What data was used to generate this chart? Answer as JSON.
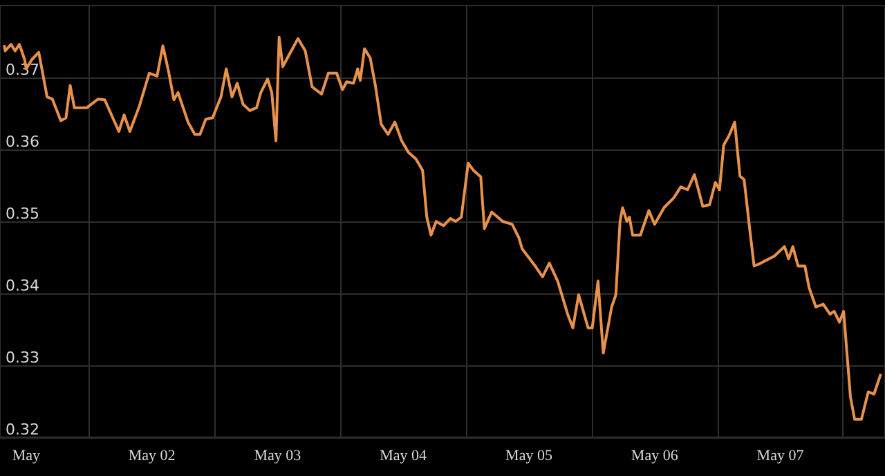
{
  "chart_data": {
    "type": "line",
    "x": [
      "--04-30T19:48",
      "--04-30T20:00",
      "--04-30T21:06",
      "--04-30T21:54",
      "--04-30T22:42",
      "--04-30T23:42",
      "--05-01T00:00",
      "--05-01T01:06",
      "--05-01T02:24",
      "--05-01T04:00",
      "--05-01T05:00",
      "--05-01T06:36",
      "--05-01T07:36",
      "--05-01T08:24",
      "--05-01T09:12",
      "--05-01T11:36",
      "--05-01T13:42",
      "--05-01T15:00",
      "--05-01T17:42",
      "--05-01T18:42",
      "--05-01T19:48",
      "--05-01T21:36",
      "--05-01T23:30",
      "--05-02T01:00",
      "--05-02T02:06",
      "--05-02T03:12",
      "--05-02T04:12",
      "--05-02T05:00",
      "--05-02T06:54",
      "--05-02T08:12",
      "--05-02T09:12",
      "--05-02T10:18",
      "--05-02T11:36",
      "--05-02T13:12",
      "--05-02T14:12",
      "--05-02T15:18",
      "--05-02T16:18",
      "--05-02T17:24",
      "--05-02T18:42",
      "--05-02T20:00",
      "--05-02T20:48",
      "--05-02T22:06",
      "--05-02T22:54",
      "--05-02T23:42",
      "--05-03T00:18",
      "--05-03T01:00",
      "--05-03T02:06",
      "--05-03T03:54",
      "--05-03T05:18",
      "--05-03T06:36",
      "--05-03T08:24",
      "--05-03T09:42",
      "--05-03T11:18",
      "--05-03T12:24",
      "--05-03T13:12",
      "--05-03T14:30",
      "--05-03T15:18",
      "--05-03T15:48",
      "--05-03T16:36",
      "--05-03T17:42",
      "--05-03T18:42",
      "--05-03T19:48",
      "--05-03T21:06",
      "--05-03T22:24",
      "--05-03T23:42",
      "--05-04T01:00",
      "--05-04T02:24",
      "--05-04T03:42",
      "--05-04T04:30",
      "--05-04T05:18",
      "--05-04T06:18",
      "--05-04T07:42",
      "--05-04T09:00",
      "--05-04T10:00",
      "--05-04T11:06",
      "--05-04T12:24",
      "--05-04T13:24",
      "--05-04T14:48",
      "--05-04T15:30",
      "--05-04T16:54",
      "--05-04T19:00",
      "--05-04T20:48",
      "--05-04T22:06",
      "--05-04T22:42",
      "--05-05T01:18",
      "--05-05T02:36",
      "--05-05T03:54",
      "--05-05T05:30",
      "--05-05T07:24",
      "--05-05T08:24",
      "--05-05T09:30",
      "--05-05T11:18",
      "--05-05T12:06",
      "--05-05T13:12",
      "--05-05T14:12",
      "--05-05T15:48",
      "--05-05T16:36",
      "--05-05T17:24",
      "--05-05T17:54",
      "--05-05T18:42",
      "--05-05T19:12",
      "--05-05T19:48",
      "--05-05T21:18",
      "--05-05T22:54",
      "--05-06T00:00",
      "--05-06T01:48",
      "--05-06T03:42",
      "--05-06T05:00",
      "--05-06T06:18",
      "--05-06T07:36",
      "--05-06T09:12",
      "--05-06T10:30",
      "--05-06T11:36",
      "--05-06T12:24",
      "--05-06T13:12",
      "--05-06T14:12",
      "--05-06T15:18",
      "--05-06T16:18",
      "--05-06T17:06",
      "--05-06T18:12",
      "--05-06T19:00",
      "--05-06T20:18",
      "--05-06T22:54",
      "--05-07T00:48",
      "--05-07T01:36",
      "--05-07T02:24",
      "--05-07T03:24",
      "--05-07T04:42",
      "--05-07T05:30",
      "--05-07T06:48",
      "--05-07T08:12",
      "--05-07T09:30",
      "--05-07T10:18",
      "--05-07T11:18",
      "--05-07T12:06",
      "--05-07T13:24",
      "--05-07T14:12",
      "--05-07T15:30",
      "--05-07T16:48",
      "--05-07T17:54",
      "--05-07T19:12"
    ],
    "series": [
      {
        "color": "#e8914a",
        "values": [
          0.3745,
          0.3737,
          0.3746,
          0.3737,
          0.3746,
          0.3725,
          0.3712,
          0.3725,
          0.3735,
          0.3673,
          0.367,
          0.364,
          0.3644,
          0.3689,
          0.3658,
          0.3658,
          0.367,
          0.3669,
          0.3625,
          0.3648,
          0.3625,
          0.366,
          0.3706,
          0.3702,
          0.3744,
          0.3708,
          0.3669,
          0.3679,
          0.3638,
          0.3621,
          0.3621,
          0.3642,
          0.3644,
          0.3673,
          0.3712,
          0.3673,
          0.3692,
          0.3663,
          0.3654,
          0.3658,
          0.3679,
          0.3698,
          0.3679,
          0.3612,
          0.3756,
          0.3715,
          0.373,
          0.3754,
          0.3737,
          0.3687,
          0.3677,
          0.3706,
          0.3706,
          0.3683,
          0.3694,
          0.3692,
          0.3712,
          0.3696,
          0.374,
          0.3727,
          0.3688,
          0.3635,
          0.3621,
          0.3638,
          0.3612,
          0.3596,
          0.3587,
          0.3571,
          0.3506,
          0.3481,
          0.35,
          0.3494,
          0.3504,
          0.35,
          0.3506,
          0.3581,
          0.3571,
          0.3562,
          0.349,
          0.3513,
          0.35,
          0.3496,
          0.3477,
          0.3462,
          0.3437,
          0.3423,
          0.3442,
          0.3417,
          0.3371,
          0.3352,
          0.3398,
          0.3352,
          0.3352,
          0.3417,
          0.3317,
          0.3381,
          0.3398,
          0.35,
          0.3519,
          0.35,
          0.3506,
          0.3481,
          0.3481,
          0.3515,
          0.3496,
          0.3519,
          0.3533,
          0.3548,
          0.3544,
          0.3565,
          0.3521,
          0.3523,
          0.3554,
          0.3544,
          0.3606,
          0.3619,
          0.3638,
          0.3563,
          0.3558,
          0.3487,
          0.3438,
          0.3442,
          0.3452,
          0.3465,
          0.3448,
          0.3465,
          0.3438,
          0.3438,
          0.3408,
          0.3381,
          0.3385,
          0.3371,
          0.3375,
          0.336,
          0.3375,
          0.3256,
          0.3225,
          0.3225,
          0.3263,
          0.326,
          0.3288
        ]
      }
    ],
    "xlim": [
      "--04-30T19:00",
      "--05-07T20:00"
    ],
    "xticks": [
      {
        "value": "--05-01T00:00",
        "label": "May"
      },
      {
        "value": "--05-01T12:00",
        "label": null
      },
      {
        "value": "--05-02T00:00",
        "label": "May 02"
      },
      {
        "value": "--05-02T12:00",
        "label": null
      },
      {
        "value": "--05-03T00:00",
        "label": "May 03"
      },
      {
        "value": "--05-03T12:00",
        "label": null
      },
      {
        "value": "--05-04T00:00",
        "label": "May 04"
      },
      {
        "value": "--05-04T12:00",
        "label": null
      },
      {
        "value": "--05-05T00:00",
        "label": "May 05"
      },
      {
        "value": "--05-05T12:00",
        "label": null
      },
      {
        "value": "--05-06T00:00",
        "label": "May 06"
      },
      {
        "value": "--05-06T12:00",
        "label": null
      },
      {
        "value": "--05-07T00:00",
        "label": "May 07"
      },
      {
        "value": "--05-07T12:00",
        "label": null
      }
    ],
    "ylim": [
      0.32,
      0.38
    ],
    "yticks": [
      0.32,
      0.33,
      0.34,
      0.35,
      0.36,
      0.37
    ],
    "grid": true,
    "marker": "none",
    "line_style": "solid"
  }
}
